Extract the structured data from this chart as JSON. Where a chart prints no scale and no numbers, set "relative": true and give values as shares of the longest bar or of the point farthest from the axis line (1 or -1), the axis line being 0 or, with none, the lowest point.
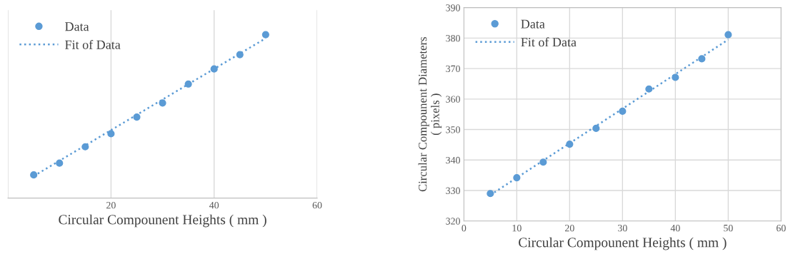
{
  "chart_data": [
    {
      "type": "scatter",
      "relative": true,
      "xlabel": "Circular Compounent Heights ( mm )",
      "xlim": [
        0,
        60
      ],
      "xticks": [
        {
          "value": 0,
          "label": null
        },
        20,
        40,
        60
      ],
      "grid": "x",
      "legend": "top left",
      "tick_labels": "x",
      "series": [
        {
          "name": "Data",
          "color": "#5b9bd5",
          "marker": "circle",
          "x": [
            5,
            10,
            15,
            20,
            25,
            30,
            35,
            40,
            45,
            50
          ],
          "values": [
            0.142,
            0.214,
            0.314,
            0.394,
            0.496,
            0.582,
            0.698,
            0.79,
            0.878,
            1
          ]
        },
        {
          "name": "Fit of Data",
          "type": "line",
          "color": "#5b9bd5",
          "line_style": "dotted",
          "x": [
            5,
            50
          ],
          "values": [
            0.135,
            0.978
          ]
        }
      ]
    },
    {
      "type": "scatter",
      "xlabel": "Circular Compounent Heights ( mm )",
      "ylabel": "Circular Compounent Diameters\n( pixels )",
      "xlim": [
        0,
        60
      ],
      "xticks": [
        0,
        10,
        20,
        30,
        40,
        50,
        60
      ],
      "ylim": [
        320,
        390
      ],
      "yticks": [
        320,
        330,
        340,
        350,
        360,
        370,
        380,
        390
      ],
      "grid": true,
      "legend": "top left",
      "series": [
        {
          "name": "Data",
          "color": "#5b9bd5",
          "marker": "circle",
          "x": [
            5,
            10,
            15,
            20,
            25,
            30,
            35,
            40,
            45,
            50
          ],
          "values": [
            329.0,
            334.2,
            339.3,
            345.2,
            350.4,
            356.0,
            363.3,
            367.1,
            373.2,
            381.1
          ]
        },
        {
          "name": "Fit of Data",
          "type": "line",
          "color": "#5b9bd5",
          "line_style": "dotted",
          "x": [
            5,
            50
          ],
          "values": [
            328.5,
            379.5
          ]
        }
      ]
    }
  ]
}
